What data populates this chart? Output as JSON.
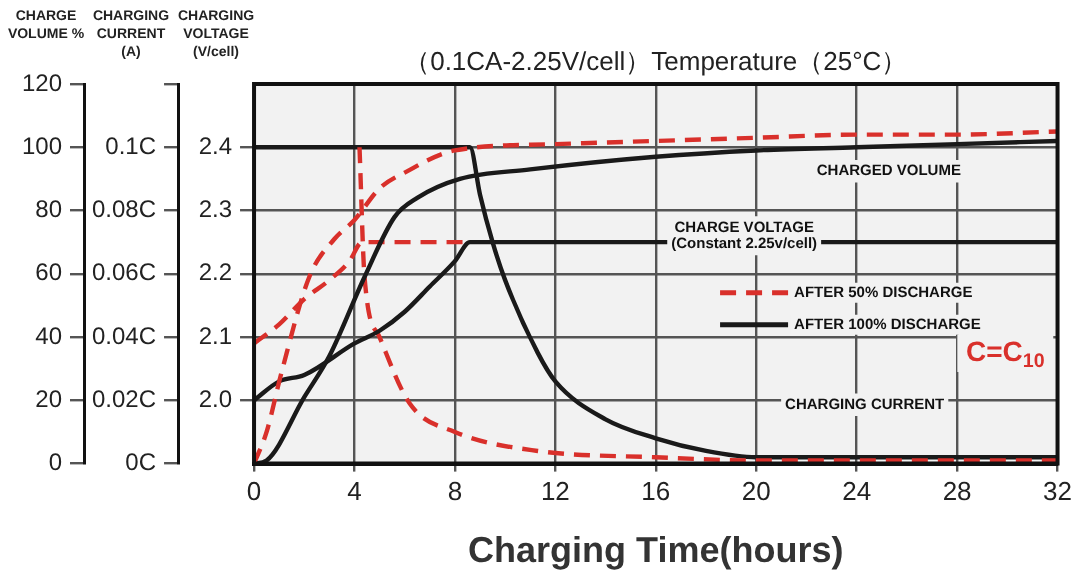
{
  "chart_data": {
    "type": "line",
    "title": "（0.1CA-2.25V/cell）Temperature（25°C）",
    "xlabel": "Charging Time(hours)",
    "ylabel": "CHARGE VOLUME %",
    "y2label": "CHARGING CURRENT (A)",
    "y3label": "CHARGING VOLTAGE (V/cell)",
    "xlim": [
      0,
      32
    ],
    "xticks": [
      0,
      4,
      8,
      12,
      16,
      20,
      24,
      28,
      32
    ],
    "ylim": [
      0,
      120
    ],
    "yticks": [
      0,
      20,
      40,
      60,
      80,
      100,
      120
    ],
    "y2lim": [
      0,
      0.12
    ],
    "y2ticks": [
      {
        "value": 0,
        "label": "0C"
      },
      {
        "value": 0.02,
        "label": "0.02C"
      },
      {
        "value": 0.04,
        "label": "0.04C"
      },
      {
        "value": 0.06,
        "label": "0.06C"
      },
      {
        "value": 0.08,
        "label": "0.08C"
      },
      {
        "value": 0.1,
        "label": "0.1C"
      },
      {
        "value": 0.12,
        "label": null
      }
    ],
    "y3lim": [
      1.9,
      2.5
    ],
    "y3ticks": [
      {
        "value": 2,
        "label": "2.0"
      },
      2.1,
      2.2,
      2.3,
      2.4
    ],
    "grid": true,
    "legend": "right",
    "marker": "none",
    "series": [
      {
        "name": "AFTER 50% DISCHARGE",
        "color": "#d9302b",
        "line_style": "dashed",
        "axis": "y",
        "x": [
          0,
          0.5,
          1.1,
          2.2,
          3.2,
          4,
          5,
          6,
          8,
          12,
          16,
          20,
          24,
          28,
          32
        ],
        "values": [
          0,
          10,
          29,
          59,
          71,
          77,
          87,
          92,
          99,
          101,
          102,
          103,
          104,
          104,
          105
        ]
      },
      {
        "name": "AFTER 100% DISCHARGE",
        "color": "#1a1a1a",
        "line_style": "solid",
        "axis": "y",
        "x": [
          0,
          0.5,
          2,
          3,
          4.4,
          5.6,
          6.5,
          8.2,
          11,
          16,
          20,
          24,
          28,
          32
        ],
        "values": [
          0,
          1,
          21,
          34,
          59,
          78,
          84,
          90,
          93,
          97,
          99,
          100,
          101,
          102
        ]
      },
      {
        "color": "#d9302b",
        "line_style": "dashed",
        "axis": "y3",
        "x": [
          0,
          1,
          2,
          3,
          3.8,
          4.3,
          8.5
        ],
        "values": [
          2.09,
          2.12,
          2.16,
          2.19,
          2.22,
          2.25,
          2.25
        ]
      },
      {
        "color": "#1a1a1a",
        "line_style": "solid",
        "axis": "y3",
        "x": [
          0,
          1,
          2,
          4,
          5,
          6,
          7,
          8,
          8.6,
          32
        ],
        "values": [
          2.0,
          2.03,
          2.04,
          2.09,
          2.11,
          2.14,
          2.18,
          2.22,
          2.25,
          2.25
        ]
      },
      {
        "color": "#d9302b",
        "line_style": "dashed",
        "axis": "y2",
        "x": [
          4.2,
          4.4,
          5,
          6.2,
          8,
          11.3,
          16,
          20,
          32
        ],
        "values": [
          0.1,
          0.059,
          0.04,
          0.019,
          0.01,
          0.004,
          0.002,
          0.001,
          0.001
        ]
      },
      {
        "color": "#1a1a1a",
        "line_style": "solid",
        "axis": "y2",
        "x": [
          0,
          8.6,
          9,
          9.5,
          10,
          11.3,
          12,
          14,
          16,
          18,
          20,
          32
        ],
        "values": [
          0.1,
          0.1,
          0.085,
          0.07,
          0.058,
          0.035,
          0.026,
          0.014,
          0.008,
          0.004,
          0.002,
          0.002
        ]
      }
    ],
    "annotations": [
      "CHARGED VOLUME",
      "CHARGE VOLTAGE\n(Constant 2.25v/cell)",
      "C=C$_{10}$",
      "CHARGING CURRENT"
    ]
  }
}
